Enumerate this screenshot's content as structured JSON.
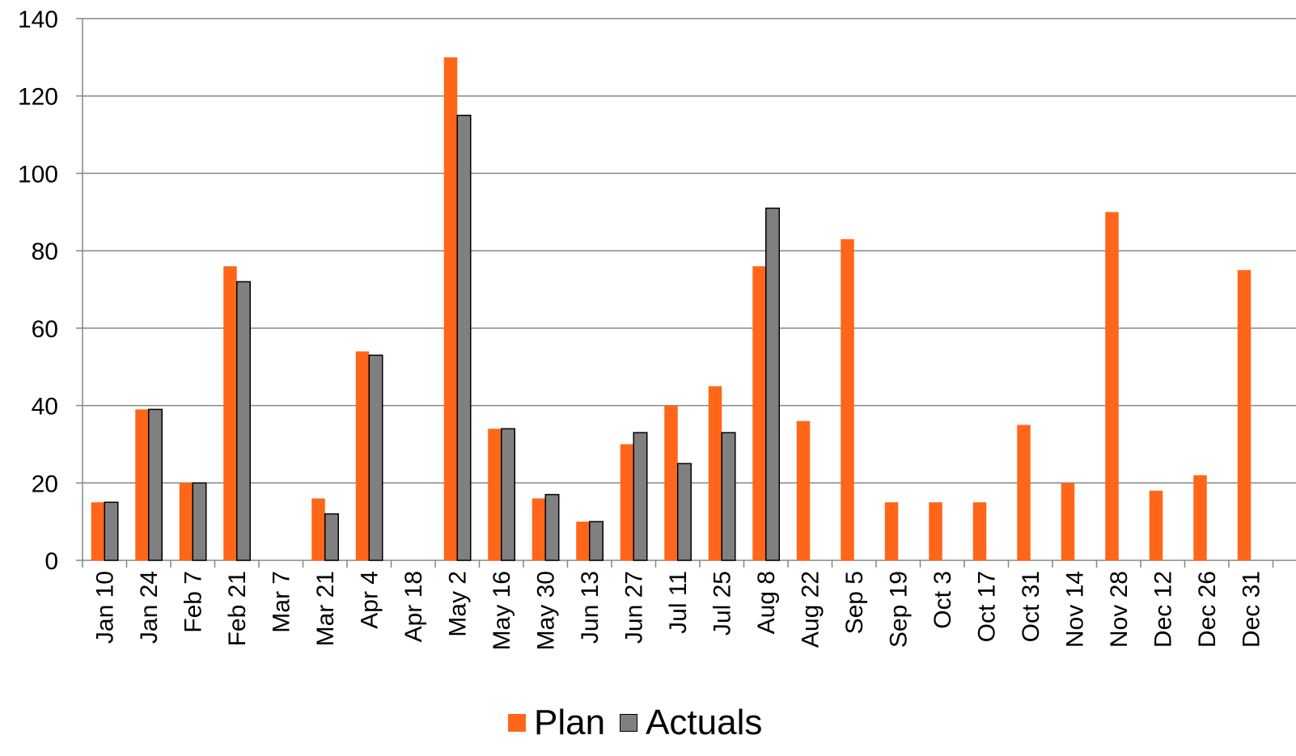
{
  "chart_data": {
    "type": "bar",
    "title": "",
    "xlabel": "",
    "ylabel": "",
    "ylim": [
      0,
      140
    ],
    "yticks": [
      "0",
      "20",
      "40",
      "60",
      "80",
      "100",
      "120",
      "140"
    ],
    "grid": true,
    "legend_position": "bottom",
    "categories": [
      "Jan 10",
      "Jan 24",
      "Feb 7",
      "Feb 21",
      "Mar 7",
      "Mar 21",
      "Apr 4",
      "Apr 18",
      "May 2",
      "May 16",
      "May 30",
      "Jun 13",
      "Jun 27",
      "Jul 11",
      "Jul 25",
      "Aug 8",
      "Aug 22",
      "Sep 5",
      "Sep 19",
      "Oct 3",
      "Oct 17",
      "Oct 31",
      "Nov 14",
      "Nov 28",
      "Dec 12",
      "Dec 26",
      "Dec 31"
    ],
    "series": [
      {
        "name": "Plan",
        "color": "#FF6619",
        "values": [
          15,
          39,
          20,
          76,
          null,
          16,
          54,
          null,
          130,
          34,
          16,
          10,
          30,
          40,
          45,
          76,
          36,
          83,
          15,
          15,
          15,
          35,
          20,
          90,
          18,
          22,
          75
        ]
      },
      {
        "name": "Actuals",
        "color": "#808080",
        "values": [
          15,
          39,
          20,
          72,
          null,
          12,
          53,
          null,
          115,
          34,
          17,
          10,
          33,
          25,
          33,
          91,
          null,
          null,
          null,
          null,
          null,
          null,
          null,
          null,
          null,
          null,
          null
        ]
      }
    ]
  }
}
